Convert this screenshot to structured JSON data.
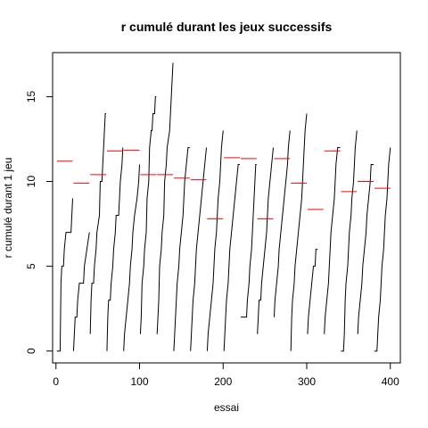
{
  "chart_data": {
    "type": "line",
    "title": "r cumulé durant les jeux successifs",
    "xlabel": "essai",
    "ylabel": "r cumulé durant 1 jeu",
    "xlim": [
      -4,
      412
    ],
    "ylim": [
      -0.7,
      17.6
    ],
    "x_ticks": [
      0,
      100,
      200,
      300,
      400
    ],
    "y_ticks": [
      0,
      5,
      10,
      15
    ],
    "grid": false,
    "legend": "none",
    "series_colors": {
      "cumulative": "#000000",
      "game_mean": "#ff0000"
    },
    "games": [
      {
        "start": 1,
        "end": 20,
        "points": [
          [
            1,
            0
          ],
          [
            5,
            0
          ],
          [
            6,
            4
          ],
          [
            7,
            5
          ],
          [
            9,
            5
          ],
          [
            10,
            6
          ],
          [
            12,
            7
          ],
          [
            18,
            7
          ],
          [
            19,
            8
          ],
          [
            20,
            9
          ]
        ],
        "mean": 11.2
      },
      {
        "start": 21,
        "end": 40,
        "points": [
          [
            21,
            0
          ],
          [
            22,
            1
          ],
          [
            23,
            2
          ],
          [
            25,
            2
          ],
          [
            26,
            3
          ],
          [
            28,
            4
          ],
          [
            33,
            4
          ],
          [
            34,
            5
          ],
          [
            37,
            6
          ],
          [
            40,
            7
          ]
        ],
        "mean": 9.9
      },
      {
        "start": 41,
        "end": 60,
        "points": [
          [
            41,
            1
          ],
          [
            42,
            3
          ],
          [
            43,
            4
          ],
          [
            45,
            4
          ],
          [
            46,
            5
          ],
          [
            48,
            6
          ],
          [
            49,
            7
          ],
          [
            52,
            8
          ],
          [
            53,
            10
          ],
          [
            55,
            10
          ],
          [
            56,
            11
          ],
          [
            57,
            12
          ],
          [
            58,
            13
          ],
          [
            59,
            14
          ],
          [
            60,
            14
          ]
        ],
        "mean": 10.4
      },
      {
        "start": 61,
        "end": 80,
        "points": [
          [
            61,
            0
          ],
          [
            62,
            2
          ],
          [
            63,
            3
          ],
          [
            65,
            3
          ],
          [
            66,
            4
          ],
          [
            68,
            5
          ],
          [
            69,
            6
          ],
          [
            71,
            7
          ],
          [
            72,
            8
          ],
          [
            75,
            8
          ],
          [
            76,
            9
          ],
          [
            77,
            10
          ],
          [
            79,
            11
          ],
          [
            80,
            12
          ]
        ],
        "mean": 11.8
      },
      {
        "start": 81,
        "end": 100,
        "points": [
          [
            81,
            0
          ],
          [
            82,
            1
          ],
          [
            84,
            2
          ],
          [
            86,
            3
          ],
          [
            88,
            4
          ],
          [
            89,
            5
          ],
          [
            91,
            6
          ],
          [
            92,
            7
          ],
          [
            94,
            8
          ],
          [
            97,
            9
          ],
          [
            99,
            10
          ],
          [
            100,
            11
          ]
        ],
        "mean": 11.85
      },
      {
        "start": 101,
        "end": 120,
        "points": [
          [
            101,
            1
          ],
          [
            102,
            2
          ],
          [
            103,
            4
          ],
          [
            105,
            5
          ],
          [
            106,
            6
          ],
          [
            108,
            7
          ],
          [
            109,
            9
          ],
          [
            111,
            10
          ],
          [
            112,
            12
          ],
          [
            114,
            13
          ],
          [
            115,
            13
          ],
          [
            116,
            14
          ],
          [
            118,
            14
          ],
          [
            119,
            15
          ],
          [
            120,
            15
          ]
        ],
        "mean": 10.4
      },
      {
        "start": 121,
        "end": 140,
        "points": [
          [
            121,
            1
          ],
          [
            122,
            2
          ],
          [
            123,
            3
          ],
          [
            124,
            5
          ],
          [
            126,
            6
          ],
          [
            127,
            7
          ],
          [
            129,
            8
          ],
          [
            130,
            10
          ],
          [
            132,
            11
          ],
          [
            133,
            12
          ],
          [
            136,
            13
          ],
          [
            137,
            14
          ],
          [
            138,
            15
          ],
          [
            139,
            16
          ],
          [
            140,
            17
          ]
        ],
        "mean": 10.4
      },
      {
        "start": 141,
        "end": 160,
        "points": [
          [
            141,
            0
          ],
          [
            142,
            1
          ],
          [
            144,
            3
          ],
          [
            145,
            4
          ],
          [
            147,
            5
          ],
          [
            148,
            6
          ],
          [
            150,
            7
          ],
          [
            152,
            8
          ],
          [
            154,
            10
          ],
          [
            156,
            11
          ],
          [
            158,
            12
          ],
          [
            160,
            12
          ]
        ],
        "mean": 10.2
      },
      {
        "start": 161,
        "end": 180,
        "points": [
          [
            161,
            0
          ],
          [
            162,
            1
          ],
          [
            163,
            2
          ],
          [
            164,
            3
          ],
          [
            166,
            4
          ],
          [
            167,
            5
          ],
          [
            168,
            6
          ],
          [
            170,
            7
          ],
          [
            172,
            8
          ],
          [
            174,
            9
          ],
          [
            176,
            10
          ],
          [
            178,
            11
          ],
          [
            180,
            12
          ]
        ],
        "mean": 10.1
      },
      {
        "start": 181,
        "end": 200,
        "points": [
          [
            181,
            0
          ],
          [
            182,
            1
          ],
          [
            184,
            2
          ],
          [
            186,
            3
          ],
          [
            188,
            4
          ],
          [
            189,
            5
          ],
          [
            190,
            6
          ],
          [
            192,
            7
          ],
          [
            193,
            8
          ],
          [
            194,
            9
          ],
          [
            196,
            10
          ],
          [
            197,
            11
          ],
          [
            198,
            12
          ],
          [
            200,
            13
          ]
        ],
        "mean": 7.8
      },
      {
        "start": 201,
        "end": 220,
        "points": [
          [
            201,
            0
          ],
          [
            202,
            1
          ],
          [
            203,
            2
          ],
          [
            204,
            3
          ],
          [
            206,
            4
          ],
          [
            207,
            5
          ],
          [
            208,
            6
          ],
          [
            210,
            7
          ],
          [
            212,
            8
          ],
          [
            214,
            9
          ],
          [
            216,
            10
          ],
          [
            218,
            11
          ],
          [
            220,
            11
          ]
        ],
        "mean": 11.4
      },
      {
        "start": 221,
        "end": 240,
        "points": [
          [
            221,
            2
          ],
          [
            228,
            2
          ],
          [
            229,
            3
          ],
          [
            231,
            4
          ],
          [
            232,
            5
          ],
          [
            234,
            6
          ],
          [
            235,
            7
          ],
          [
            236,
            8
          ],
          [
            237,
            9
          ],
          [
            238,
            10
          ],
          [
            239,
            11
          ],
          [
            240,
            11
          ]
        ],
        "mean": 11.35
      },
      {
        "start": 241,
        "end": 260,
        "points": [
          [
            241,
            1
          ],
          [
            242,
            2
          ],
          [
            243,
            3
          ],
          [
            245,
            3
          ],
          [
            246,
            4
          ],
          [
            248,
            5
          ],
          [
            250,
            6
          ],
          [
            252,
            7
          ],
          [
            253,
            8
          ],
          [
            254,
            9
          ],
          [
            256,
            10
          ],
          [
            258,
            11
          ],
          [
            260,
            12
          ]
        ],
        "mean": 7.8
      },
      {
        "start": 261,
        "end": 280,
        "points": [
          [
            261,
            2
          ],
          [
            262,
            3
          ],
          [
            264,
            4
          ],
          [
            266,
            5
          ],
          [
            267,
            6
          ],
          [
            269,
            7
          ],
          [
            271,
            8
          ],
          [
            273,
            9
          ],
          [
            275,
            10
          ],
          [
            277,
            11
          ],
          [
            278,
            12
          ],
          [
            280,
            13
          ]
        ],
        "mean": 11.35
      },
      {
        "start": 281,
        "end": 300,
        "points": [
          [
            281,
            0
          ],
          [
            282,
            2
          ],
          [
            283,
            3
          ],
          [
            285,
            4
          ],
          [
            286,
            5
          ],
          [
            288,
            6
          ],
          [
            290,
            7
          ],
          [
            292,
            8
          ],
          [
            294,
            9
          ],
          [
            296,
            11
          ],
          [
            298,
            13
          ],
          [
            300,
            14
          ]
        ],
        "mean": 9.9
      },
      {
        "start": 301,
        "end": 320,
        "points": [
          [
            301,
            1
          ],
          [
            302,
            2
          ],
          [
            304,
            3
          ],
          [
            306,
            4
          ],
          [
            308,
            5
          ],
          [
            310,
            5
          ],
          [
            311,
            6
          ],
          [
            313,
            6
          ]
        ],
        "mean": 8.35
      },
      {
        "start": 321,
        "end": 340,
        "points": [
          [
            321,
            1
          ],
          [
            322,
            2
          ],
          [
            324,
            3
          ],
          [
            326,
            4
          ],
          [
            327,
            5
          ],
          [
            329,
            7
          ],
          [
            331,
            8
          ],
          [
            333,
            9
          ],
          [
            334,
            10
          ],
          [
            335,
            11
          ],
          [
            337,
            12
          ],
          [
            339,
            12
          ],
          [
            340,
            12
          ]
        ],
        "mean": 11.8
      },
      {
        "start": 341,
        "end": 360,
        "points": [
          [
            341,
            0
          ],
          [
            344,
            0
          ],
          [
            345,
            1
          ],
          [
            346,
            3
          ],
          [
            347,
            4
          ],
          [
            349,
            5
          ],
          [
            350,
            6
          ],
          [
            351,
            7
          ],
          [
            353,
            8
          ],
          [
            354,
            9
          ],
          [
            356,
            10
          ],
          [
            357,
            11
          ],
          [
            358,
            12
          ],
          [
            360,
            13
          ]
        ],
        "mean": 9.4
      },
      {
        "start": 361,
        "end": 380,
        "points": [
          [
            361,
            1
          ],
          [
            362,
            2
          ],
          [
            364,
            3
          ],
          [
            366,
            4
          ],
          [
            367,
            5
          ],
          [
            369,
            6
          ],
          [
            371,
            7
          ],
          [
            372,
            8
          ],
          [
            374,
            9
          ],
          [
            376,
            10
          ],
          [
            377,
            11
          ],
          [
            379,
            11
          ],
          [
            380,
            11
          ]
        ],
        "mean": 10.0
      },
      {
        "start": 381,
        "end": 400,
        "points": [
          [
            381,
            0
          ],
          [
            384,
            0
          ],
          [
            385,
            1
          ],
          [
            386,
            2
          ],
          [
            388,
            3
          ],
          [
            389,
            4
          ],
          [
            390,
            5
          ],
          [
            392,
            6
          ],
          [
            393,
            7
          ],
          [
            394,
            8
          ],
          [
            396,
            9
          ],
          [
            397,
            10
          ],
          [
            398,
            11
          ],
          [
            400,
            12
          ]
        ],
        "mean": 9.6
      }
    ]
  }
}
